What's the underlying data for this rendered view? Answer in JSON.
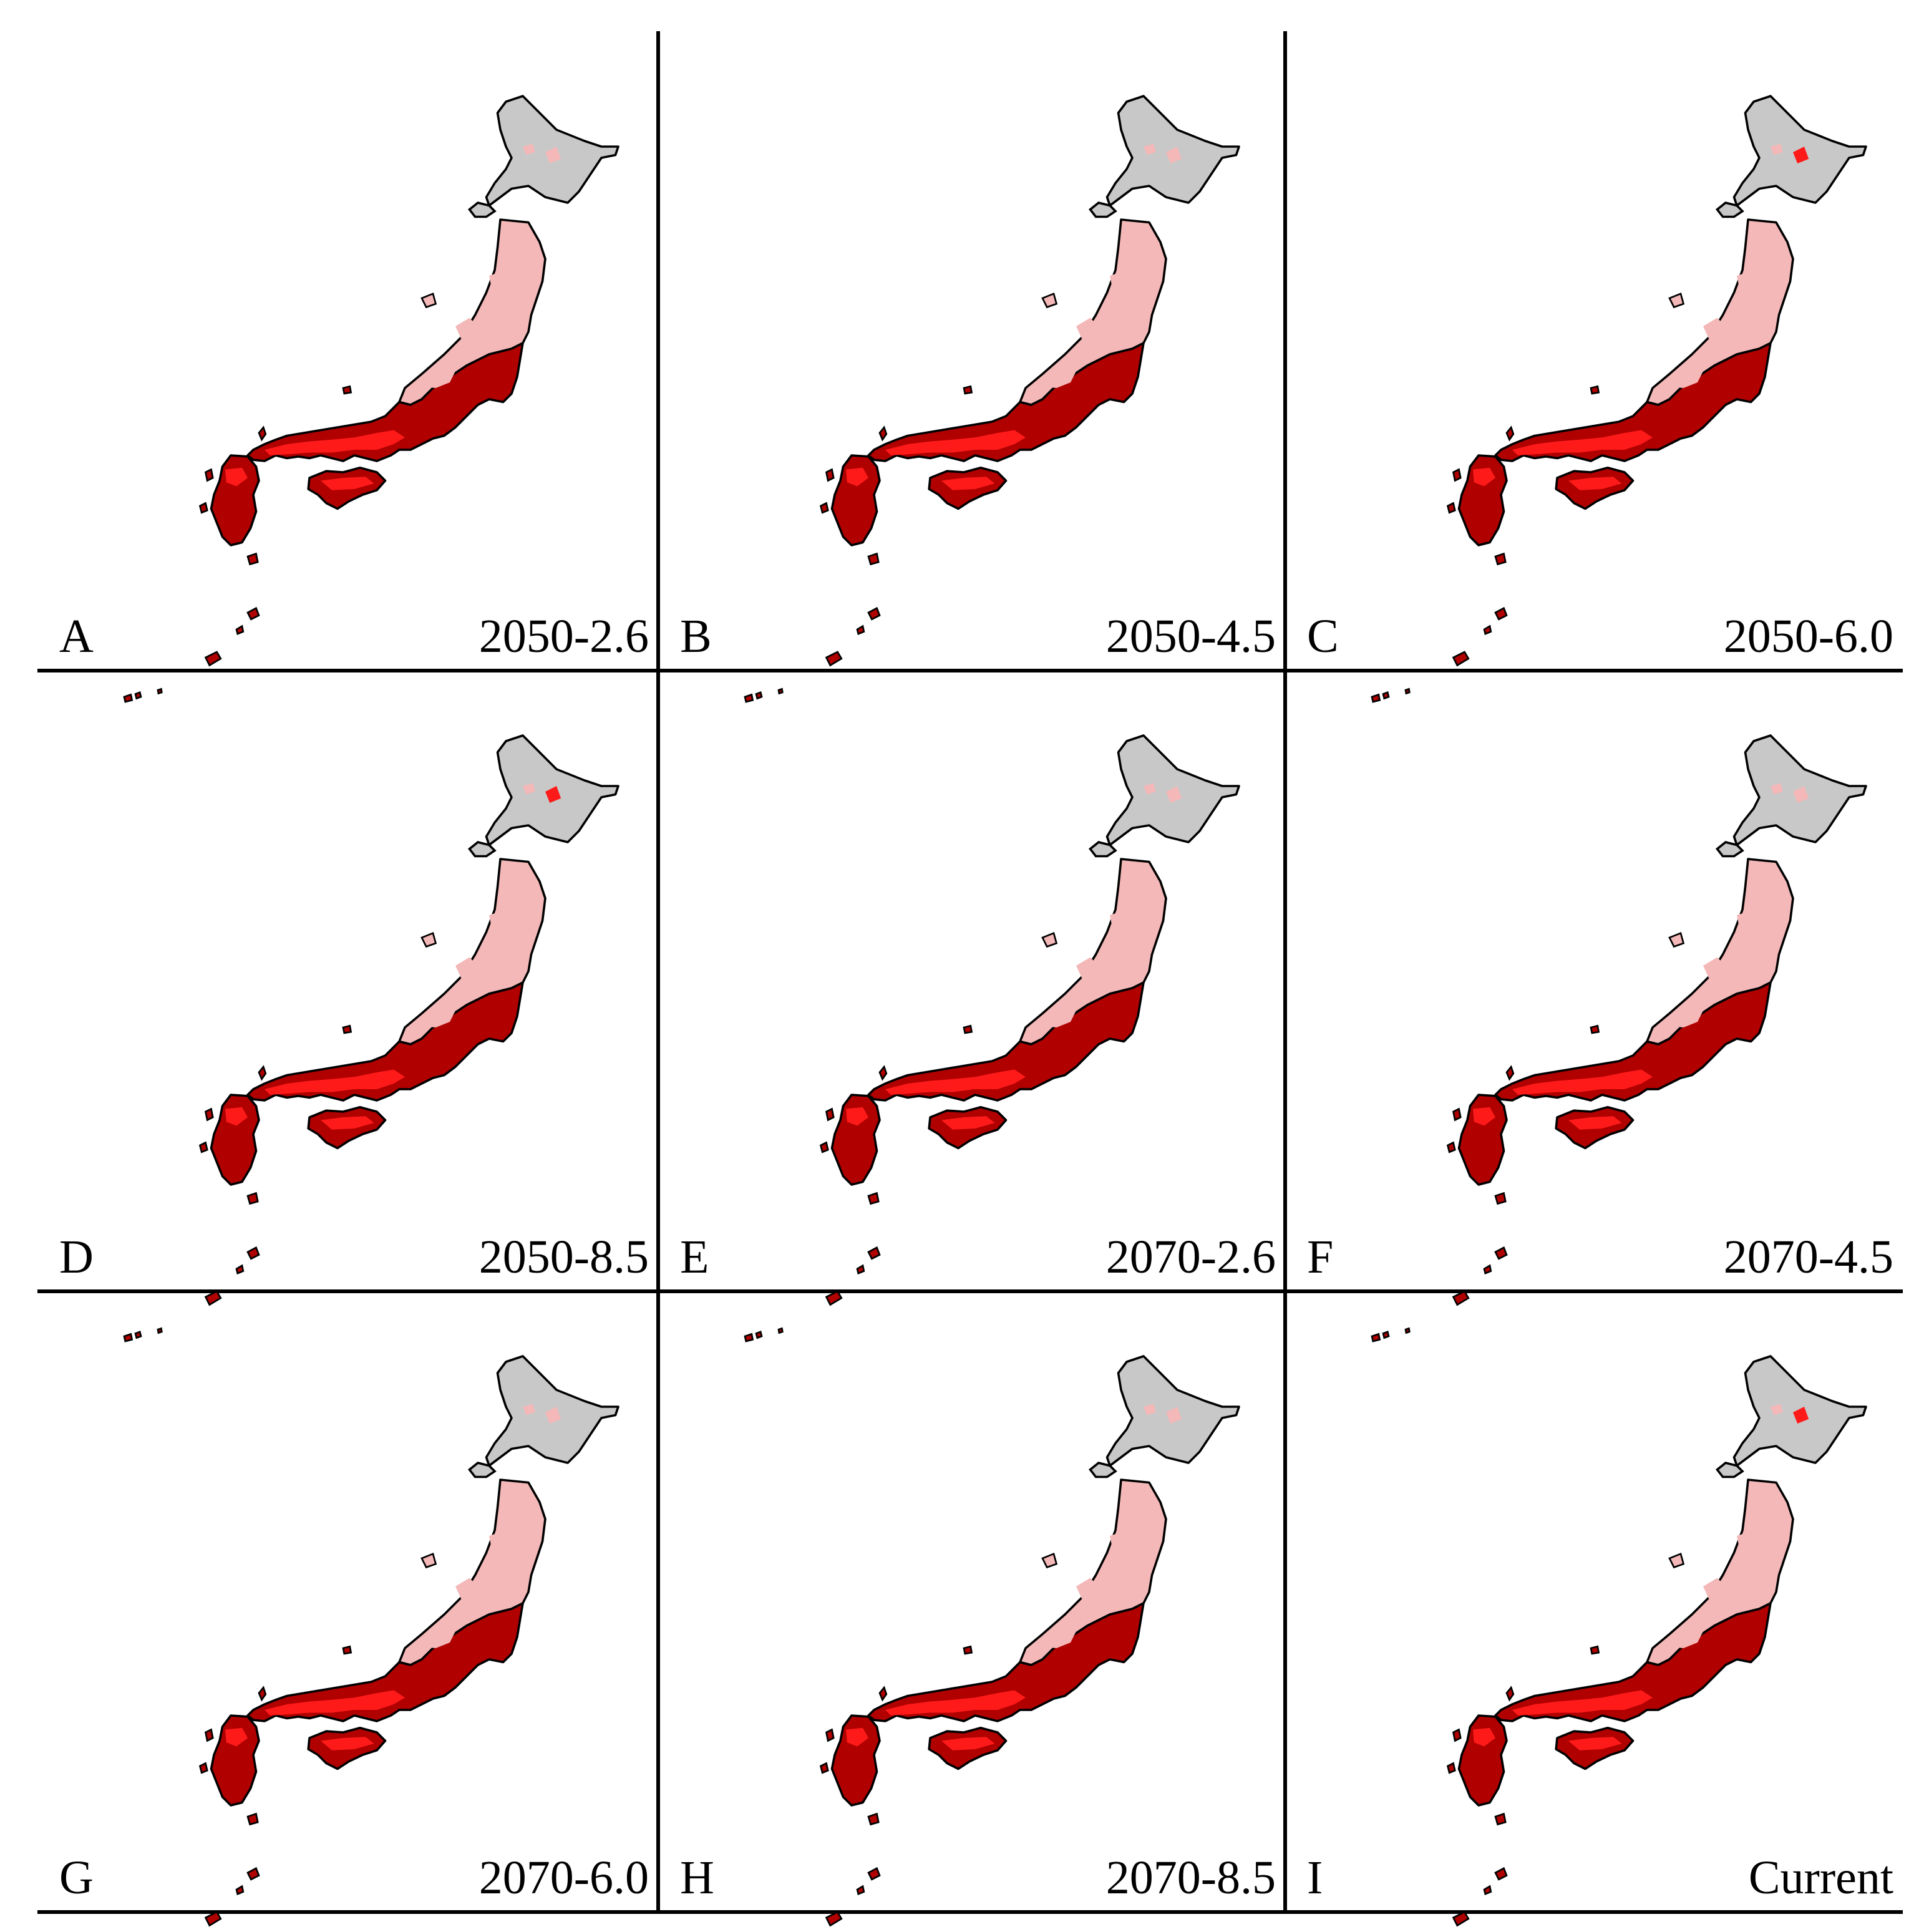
{
  "colors": {
    "land_unsuitable": "#c8c8c8",
    "low": "#f4b8b8",
    "medium": "#ff1a1a",
    "high": "#b00000",
    "outline": "#000000",
    "frame": "#000000"
  },
  "panels": [
    {
      "letter": "A",
      "scenario": "2050-2.6",
      "hokkaido_level": "low"
    },
    {
      "letter": "B",
      "scenario": "2050-4.5",
      "hokkaido_level": "low"
    },
    {
      "letter": "C",
      "scenario": "2050-6.0",
      "hokkaido_level": "medium"
    },
    {
      "letter": "D",
      "scenario": "2050-8.5",
      "hokkaido_level": "medium"
    },
    {
      "letter": "E",
      "scenario": "2070-2.6",
      "hokkaido_level": "low"
    },
    {
      "letter": "F",
      "scenario": "2070-4.5",
      "hokkaido_level": "low"
    },
    {
      "letter": "G",
      "scenario": "2070-6.0",
      "hokkaido_level": "low"
    },
    {
      "letter": "H",
      "scenario": "2070-8.5",
      "hokkaido_level": "low"
    },
    {
      "letter": "I",
      "scenario": "Current",
      "hokkaido_level": "medium"
    }
  ]
}
